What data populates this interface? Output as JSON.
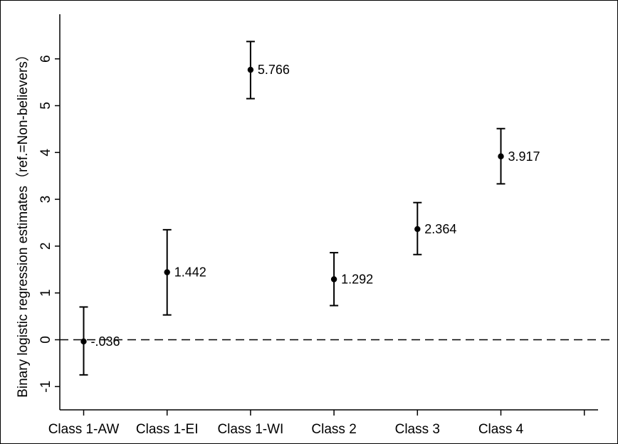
{
  "chart_data": {
    "type": "scatter",
    "subtype": "point-estimate-with-error-bars",
    "xlabel": "",
    "ylabel": "Binary logistic regression estimates（ref.=Non-believers）",
    "categories": [
      "Class 1-AW",
      "Class 1-EI",
      "Class 1-WI",
      "Class 2",
      "Class 3",
      "Class 4"
    ],
    "estimates": [
      -0.036,
      1.442,
      5.766,
      1.292,
      2.364,
      3.917
    ],
    "estimate_labels": [
      "-.036",
      "1.442",
      "5.766",
      "1.292",
      "2.364",
      "3.917"
    ],
    "ci_lower": [
      -0.75,
      0.53,
      5.15,
      0.73,
      1.82,
      3.33
    ],
    "ci_upper": [
      0.7,
      2.35,
      6.37,
      1.86,
      2.93,
      4.51
    ],
    "ylim": [
      -1.5,
      6.9
    ],
    "yticks": [
      -1,
      0,
      1,
      2,
      3,
      4,
      5,
      6
    ],
    "ytick_labels": [
      "-1",
      "0",
      "1",
      "2",
      "3",
      "4",
      "5",
      "6"
    ],
    "reference_line": {
      "y": 0,
      "style": "dashed"
    },
    "grid": false,
    "legend": "none",
    "colors": {
      "points": "#000000",
      "axes": "#000000",
      "background": "#ffffff"
    }
  }
}
